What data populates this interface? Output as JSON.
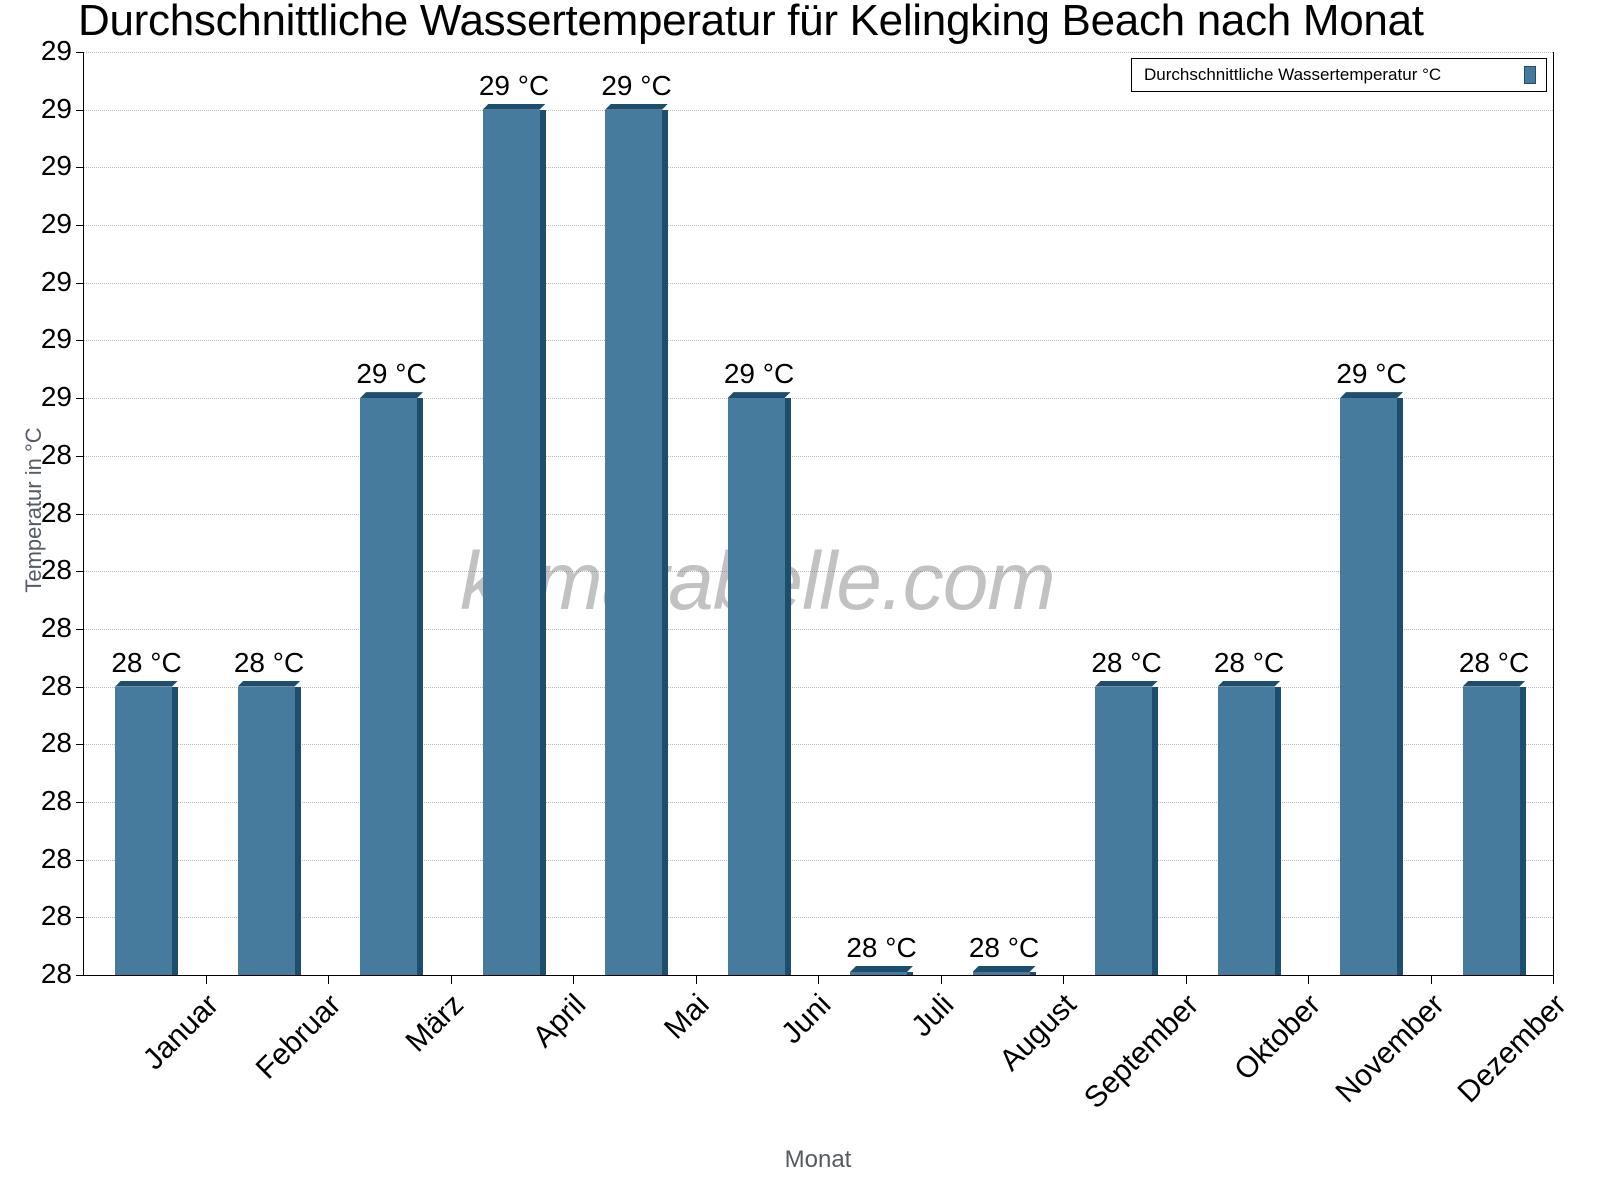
{
  "title": "Durchschnittliche Wassertemperatur für Kelingking Beach nach Monat",
  "watermark": "klimatabelle.com",
  "legend": {
    "label": "Durchschnittliche Wassertemperatur °C",
    "color": "#467b9d"
  },
  "axes": {
    "ylabel": "Temperatur in °C",
    "xlabel": "Monat",
    "ytick_labels": [
      "29",
      "29",
      "29",
      "29",
      "29",
      "29",
      "29",
      "28",
      "28",
      "28",
      "28",
      "28",
      "28",
      "28",
      "28",
      "28",
      "28"
    ]
  },
  "bars": [
    {
      "month": "Januar",
      "label": "28 °C"
    },
    {
      "month": "Februar",
      "label": "28 °C"
    },
    {
      "month": "März",
      "label": "29 °C"
    },
    {
      "month": "April",
      "label": "29 °C"
    },
    {
      "month": "Mai",
      "label": "29 °C"
    },
    {
      "month": "Juni",
      "label": "29 °C"
    },
    {
      "month": "Juli",
      "label": "28 °C"
    },
    {
      "month": "August",
      "label": "28 °C"
    },
    {
      "month": "September",
      "label": "28 °C"
    },
    {
      "month": "Oktober",
      "label": "28 °C"
    },
    {
      "month": "November",
      "label": "29 °C"
    },
    {
      "month": "Dezember",
      "label": "28 °C"
    }
  ],
  "chart_data": {
    "type": "bar",
    "title": "Durchschnittliche Wassertemperatur für Kelingking Beach nach Monat",
    "xlabel": "Monat",
    "ylabel": "Temperatur in °C",
    "categories": [
      "Januar",
      "Februar",
      "März",
      "April",
      "Mai",
      "Juni",
      "Juli",
      "August",
      "September",
      "Oktober",
      "November",
      "Dezember"
    ],
    "series": [
      {
        "name": "Durchschnittliche Wassertemperatur °C",
        "color": "#467b9d",
        "values": [
          28.0,
          28.0,
          28.5,
          29.0,
          29.0,
          28.5,
          27.5,
          27.5,
          28.0,
          28.0,
          28.5,
          28.0
        ],
        "data_labels": [
          "28 °C",
          "28 °C",
          "29 °C",
          "29 °C",
          "29 °C",
          "29 °C",
          "28 °C",
          "28 °C",
          "28 °C",
          "28 °C",
          "29 °C",
          "28 °C"
        ]
      }
    ],
    "ylim": [
      27.5,
      29.1
    ],
    "ytick_step": 0.1,
    "grid": true,
    "legend_position": "top-right",
    "watermark": "klimatabelle.com"
  }
}
